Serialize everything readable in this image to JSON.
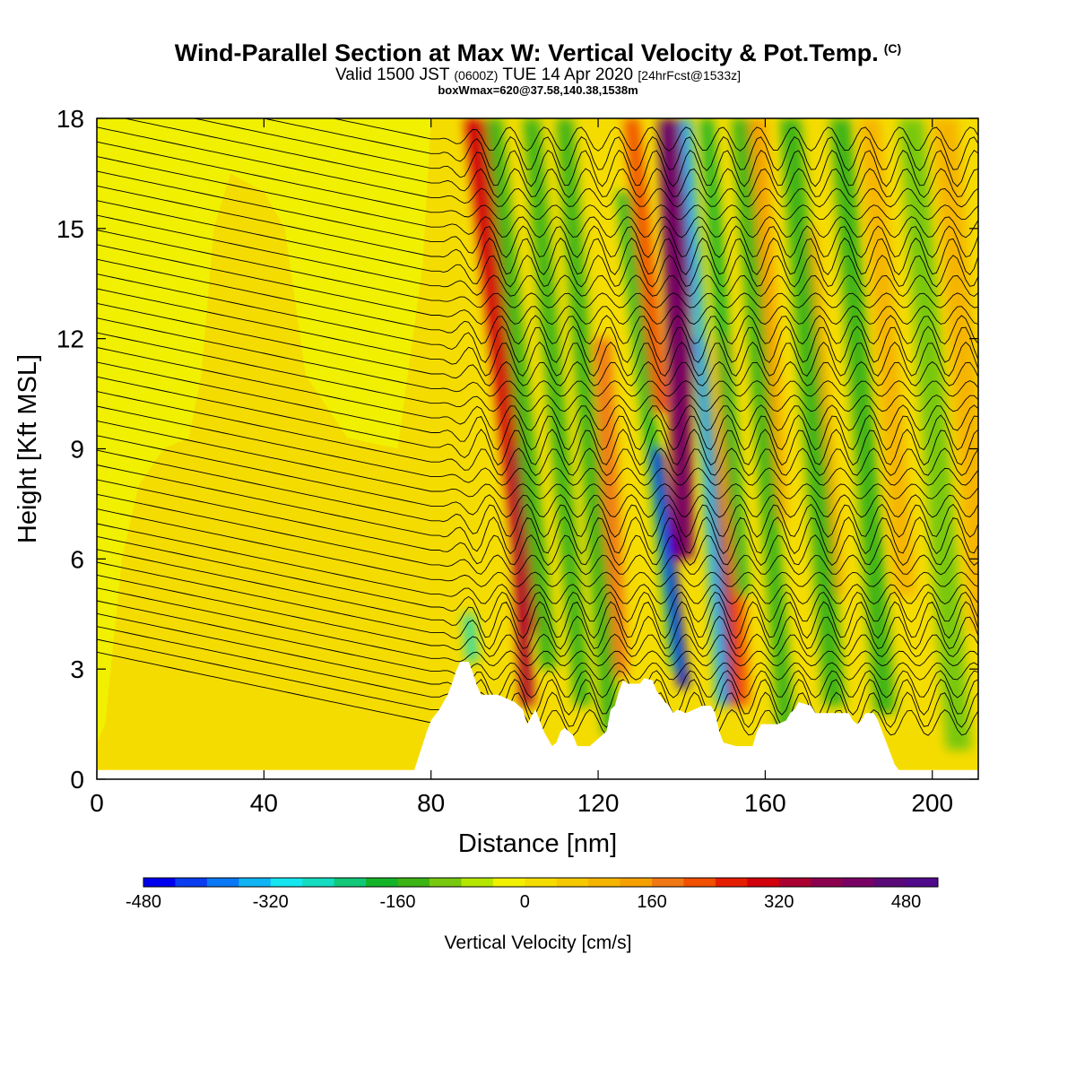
{
  "header": {
    "title": "Wind-Parallel Section at Max W: Vertical Velocity & Pot.Temp.",
    "title_unit": "(C)",
    "valid_prefix": "Valid 1500 JST",
    "valid_utc": "(0600Z)",
    "valid_suffix": "TUE 14 Apr 2020",
    "forecast": "[24hrFcst@1533z]",
    "box_info": "boxWmax=620@37.58,140.38,1538m"
  },
  "chart_data": {
    "type": "heatmap",
    "xlabel": "Distance [nm]",
    "ylabel": "Height [Kft MSL]",
    "xlim": [
      0,
      211
    ],
    "ylim": [
      0,
      18
    ],
    "x_ticks": [
      0,
      40,
      80,
      120,
      160,
      200
    ],
    "y_ticks": [
      0,
      3,
      6,
      9,
      12,
      15,
      18
    ],
    "colorbar": {
      "label": "Vertical Velocity [cm/s]",
      "ticks": [
        -480,
        -320,
        -160,
        0,
        160,
        320,
        480
      ],
      "range": [
        -480,
        520
      ],
      "colors": [
        "#0000ee",
        "#0a3cf0",
        "#0a78f5",
        "#10b4f5",
        "#14e6f0",
        "#14dcc0",
        "#10c878",
        "#14b428",
        "#3cb414",
        "#78c810",
        "#b4e600",
        "#f0f000",
        "#f5dc00",
        "#f5c800",
        "#f5b400",
        "#f5a000",
        "#f07814",
        "#f05000",
        "#e61e00",
        "#d2000a",
        "#aa0032",
        "#8c0050",
        "#780064",
        "#5a0a78",
        "#500a8c"
      ]
    },
    "terrain": [
      [
        0,
        0.25
      ],
      [
        76,
        0.25
      ],
      [
        77,
        0.6
      ],
      [
        78,
        0.95
      ],
      [
        79,
        1.3
      ],
      [
        80,
        1.6
      ],
      [
        82,
        1.9
      ],
      [
        84,
        2.3
      ],
      [
        85,
        2.6
      ],
      [
        86,
        2.95
      ],
      [
        87,
        3.2
      ],
      [
        89,
        3.2
      ],
      [
        90,
        2.9
      ],
      [
        91,
        2.55
      ],
      [
        92,
        2.3
      ],
      [
        96,
        2.3
      ],
      [
        100,
        2.1
      ],
      [
        102,
        1.9
      ],
      [
        103,
        1.5
      ],
      [
        104,
        1.7
      ],
      [
        105,
        1.9
      ],
      [
        106,
        1.6
      ],
      [
        107,
        1.3
      ],
      [
        108,
        1.1
      ],
      [
        109,
        0.9
      ],
      [
        110,
        1.0
      ],
      [
        111,
        1.3
      ],
      [
        112,
        1.4
      ],
      [
        114,
        1.2
      ],
      [
        115,
        0.9
      ],
      [
        118,
        0.9
      ],
      [
        122,
        1.3
      ],
      [
        123,
        1.9
      ],
      [
        124,
        2.0
      ],
      [
        125,
        2.4
      ],
      [
        126,
        2.7
      ],
      [
        127,
        2.6
      ],
      [
        130,
        2.6
      ],
      [
        131,
        2.75
      ],
      [
        133,
        2.7
      ],
      [
        134,
        2.4
      ],
      [
        136,
        2.1
      ],
      [
        137,
        2.0
      ],
      [
        138,
        1.8
      ],
      [
        139,
        1.9
      ],
      [
        141,
        1.8
      ],
      [
        143,
        1.9
      ],
      [
        145,
        2.0
      ],
      [
        147,
        2.0
      ],
      [
        148,
        1.8
      ],
      [
        149,
        1.3
      ],
      [
        150,
        1.0
      ],
      [
        153,
        0.9
      ],
      [
        157,
        0.9
      ],
      [
        158,
        1.3
      ],
      [
        159,
        1.5
      ],
      [
        163,
        1.5
      ],
      [
        165,
        1.6
      ],
      [
        166,
        1.8
      ],
      [
        167,
        1.9
      ],
      [
        168,
        2.1
      ],
      [
        171,
        2.0
      ],
      [
        172,
        1.8
      ],
      [
        180,
        1.8
      ],
      [
        181,
        1.6
      ],
      [
        182,
        1.5
      ],
      [
        183,
        1.6
      ],
      [
        184,
        1.8
      ],
      [
        186,
        1.8
      ],
      [
        187,
        1.6
      ],
      [
        188,
        1.3
      ],
      [
        189,
        1.0
      ],
      [
        190,
        0.7
      ],
      [
        191,
        0.4
      ],
      [
        192,
        0.25
      ],
      [
        211,
        0.25
      ]
    ],
    "updrafts": [
      {
        "x": 91,
        "top": 18,
        "bottom": 4,
        "tilt": -0.45,
        "w": 3,
        "value": 300
      },
      {
        "x": 100,
        "top": 9,
        "bottom": 2,
        "tilt": -0.2,
        "w": 1.6,
        "value": 340
      },
      {
        "x": 121,
        "top": 12,
        "bottom": 2.8,
        "tilt": -0.2,
        "w": 2,
        "value": 160
      },
      {
        "x": 128,
        "top": 18,
        "bottom": 10,
        "tilt": -0.4,
        "w": 1.8,
        "value": 200
      },
      {
        "x": 136,
        "top": 18,
        "bottom": 9,
        "tilt": -0.15,
        "w": 1.6,
        "value": 470
      },
      {
        "x": 139,
        "top": 18,
        "bottom": 6,
        "tilt": -0.05,
        "w": 2.5,
        "value": 400
      },
      {
        "x": 144,
        "top": 12,
        "bottom": 2,
        "tilt": -0.35,
        "w": 1.8,
        "value": 400
      },
      {
        "x": 150,
        "top": 12,
        "bottom": 2,
        "tilt": -0.2,
        "w": 1.8,
        "value": 210
      },
      {
        "x": 158,
        "top": 18,
        "bottom": 7,
        "tilt": -0.2,
        "w": 2.2,
        "value": 150
      },
      {
        "x": 170,
        "top": 15,
        "bottom": 5,
        "tilt": -0.3,
        "w": 2,
        "value": 120
      },
      {
        "x": 185,
        "top": 18,
        "bottom": 5,
        "tilt": -0.3,
        "w": 2.5,
        "value": 110
      },
      {
        "x": 203,
        "top": 18,
        "bottom": 4,
        "tilt": -0.3,
        "w": 3,
        "value": 90
      }
    ],
    "downdrafts": [
      {
        "x": 89,
        "top": 4.5,
        "bottom": 3.2,
        "tilt": -0.3,
        "w": 1.2,
        "value": -280
      },
      {
        "x": 95,
        "top": 18,
        "bottom": 3,
        "tilt": -0.4,
        "w": 2,
        "value": -130
      },
      {
        "x": 104,
        "top": 18,
        "bottom": 2,
        "tilt": -0.35,
        "w": 2,
        "value": -150
      },
      {
        "x": 112,
        "top": 18,
        "bottom": 1.2,
        "tilt": -0.3,
        "w": 2,
        "value": -130
      },
      {
        "x": 126,
        "top": 16,
        "bottom": 3,
        "tilt": -0.45,
        "w": 1.5,
        "value": -180
      },
      {
        "x": 134,
        "top": 9,
        "bottom": 2.5,
        "tilt": -0.45,
        "w": 1.3,
        "value": -460
      },
      {
        "x": 141,
        "top": 18,
        "bottom": 2,
        "tilt": -0.25,
        "w": 1.3,
        "value": -330
      },
      {
        "x": 146,
        "top": 18,
        "bottom": 5,
        "tilt": -0.3,
        "w": 1.5,
        "value": -200
      },
      {
        "x": 154,
        "top": 18,
        "bottom": 1,
        "tilt": -0.3,
        "w": 2,
        "value": -150
      },
      {
        "x": 166,
        "top": 18,
        "bottom": 2,
        "tilt": -0.3,
        "w": 2.5,
        "value": -140
      },
      {
        "x": 178,
        "top": 18,
        "bottom": 1.8,
        "tilt": -0.3,
        "w": 2.5,
        "value": -150
      },
      {
        "x": 195,
        "top": 18,
        "bottom": 0.8,
        "tilt": -0.3,
        "w": 3,
        "value": -120
      }
    ],
    "background_value": 30,
    "upstream_value": -30,
    "isentropes": {
      "levels_kft": [
        2.5,
        2.85,
        3.2,
        3.55,
        3.9,
        4.25,
        4.6,
        4.95,
        5.3,
        5.65,
        6.0,
        6.4,
        6.8,
        7.2,
        7.6,
        8.0,
        8.4,
        8.8,
        9.2,
        9.6,
        10.0,
        10.4,
        10.8,
        11.2,
        11.6,
        12.0,
        12.4,
        12.8,
        13.2,
        13.6,
        14.0,
        14.4,
        14.8,
        15.2,
        15.6,
        16.0,
        16.4,
        16.8,
        17.2,
        17.6,
        18.0,
        18.4
      ],
      "upstream_slope_kft_per_nm": 0.024
    }
  }
}
